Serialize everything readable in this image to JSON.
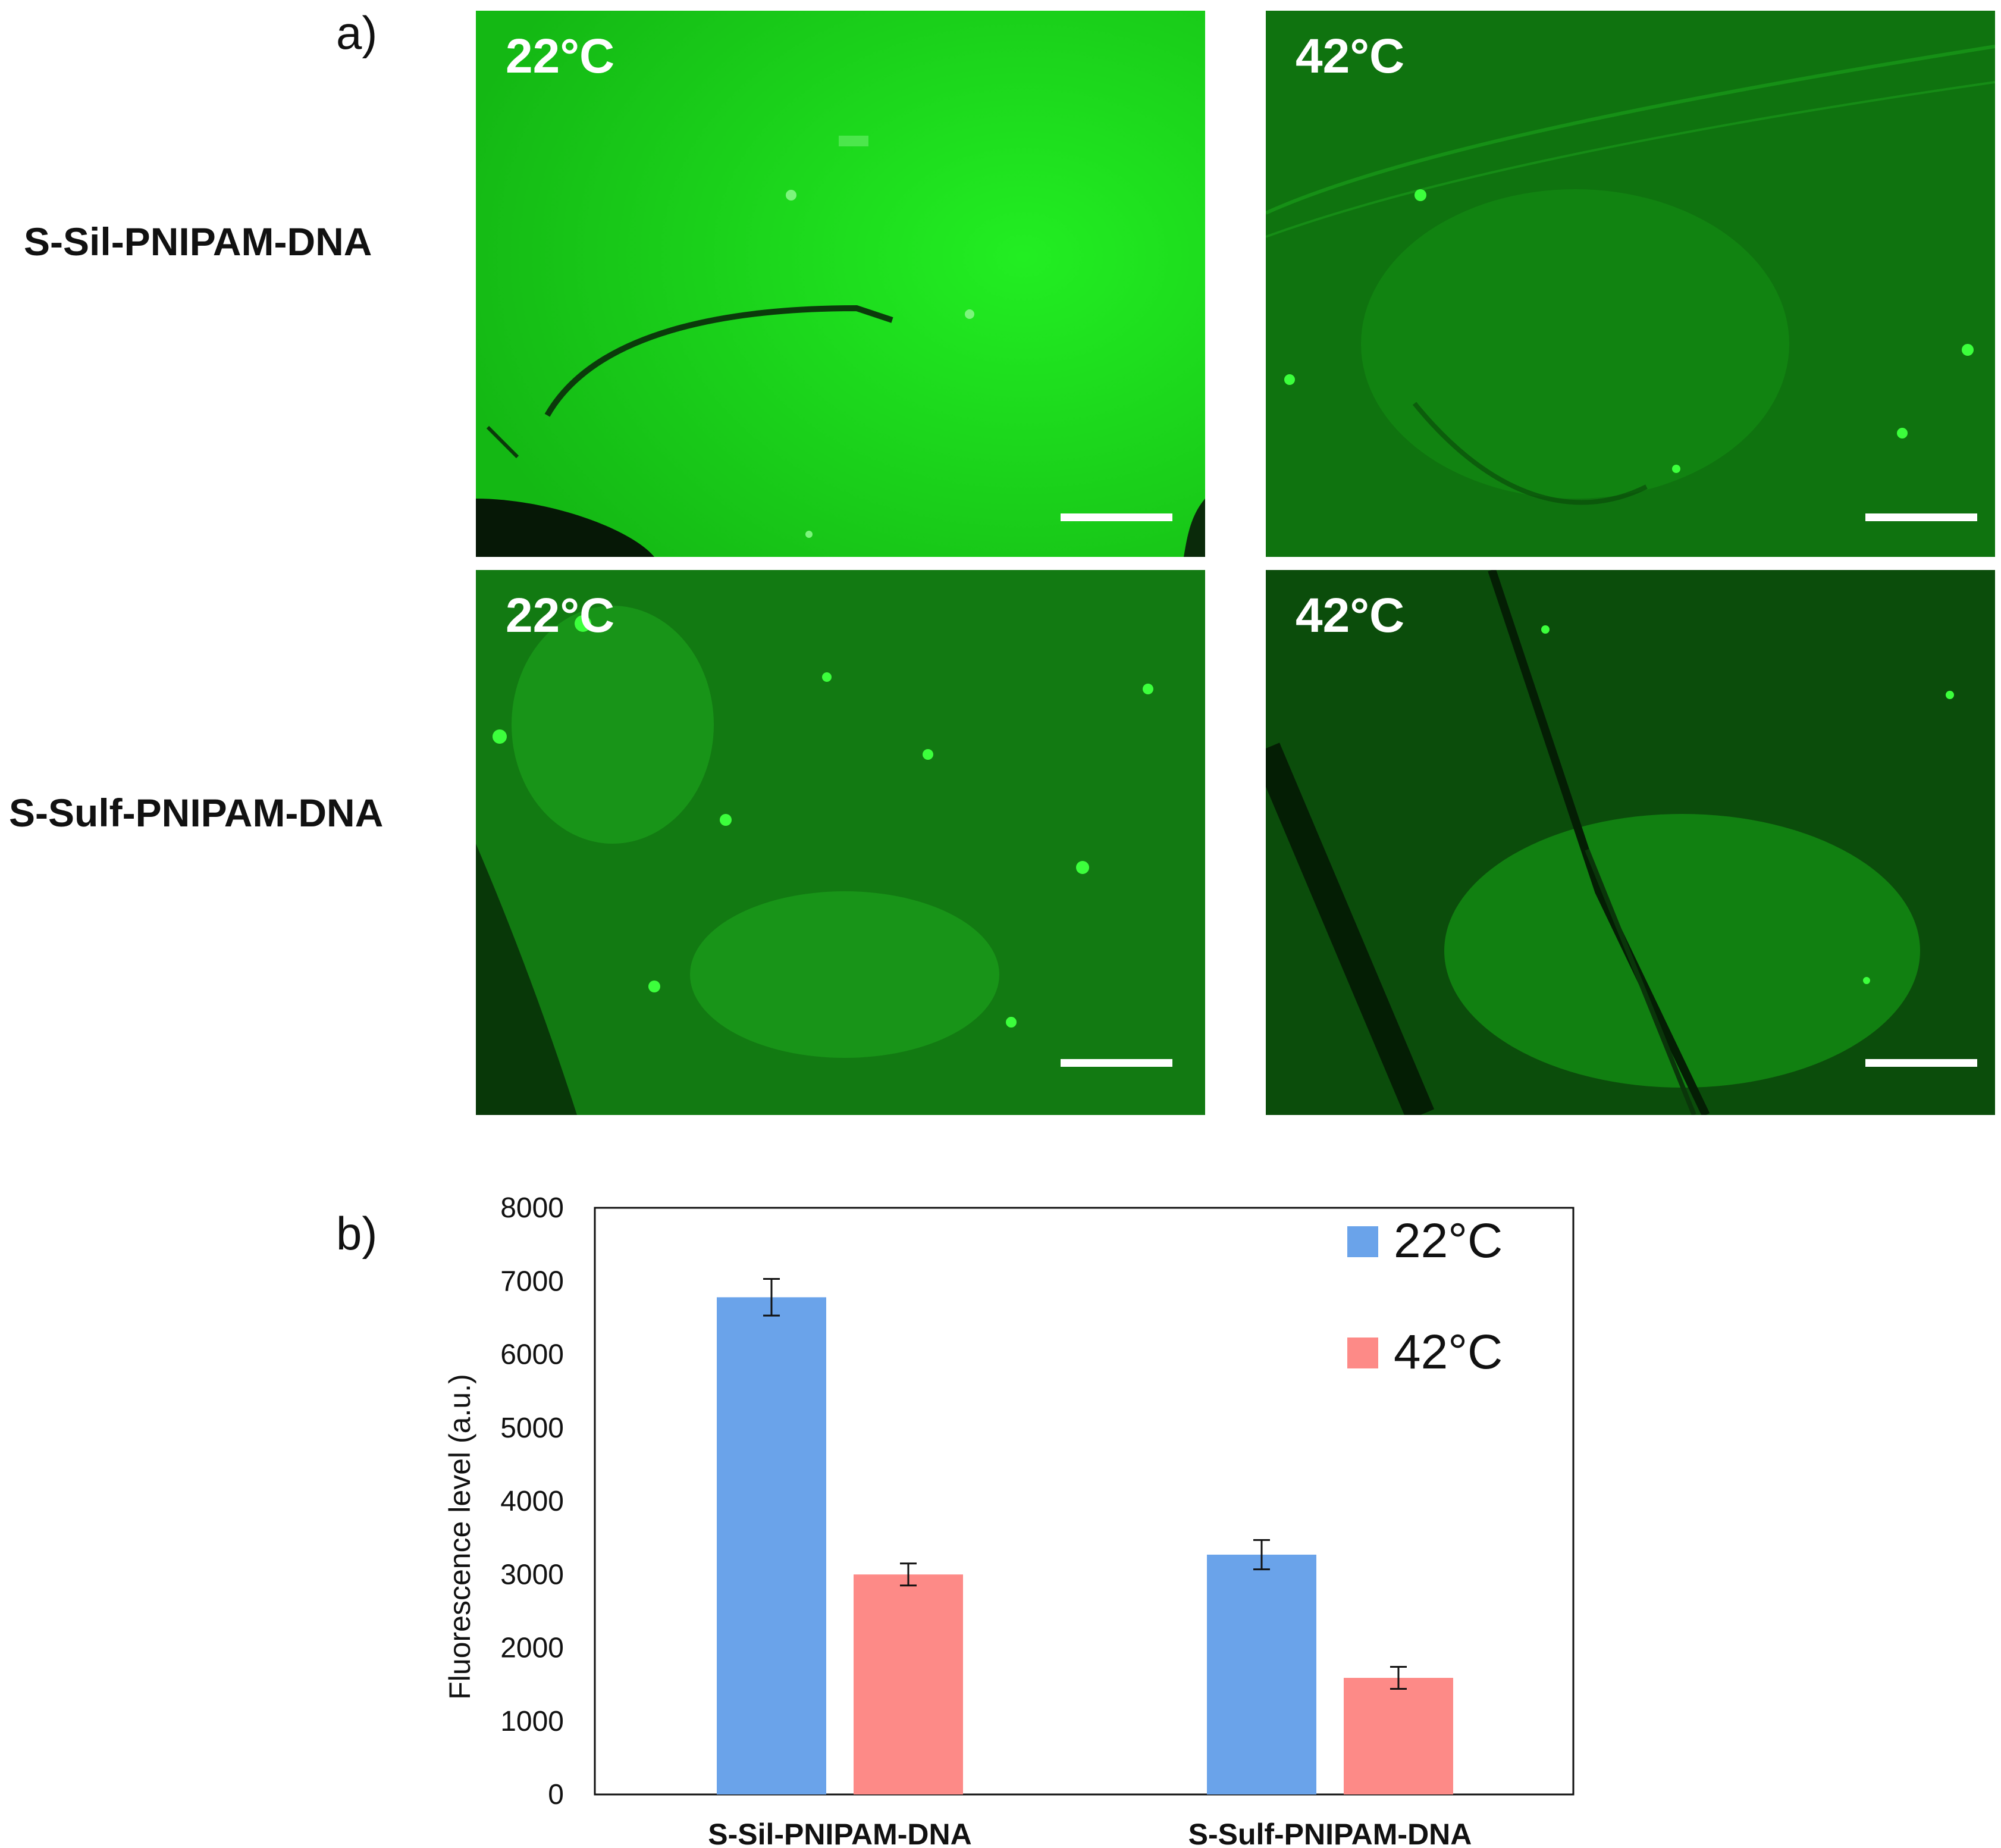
{
  "panel_a": {
    "letter": "a)",
    "rows": [
      {
        "label": "S-Sil-PNIPAM-DNA",
        "images": [
          {
            "temperature": "22°C",
            "brightness": "high"
          },
          {
            "temperature": "42°C",
            "brightness": "medium"
          }
        ]
      },
      {
        "label": "S-Sulf-PNIPAM-DNA",
        "images": [
          {
            "temperature": "22°C",
            "brightness": "medium-speckled"
          },
          {
            "temperature": "42°C",
            "brightness": "low"
          }
        ]
      }
    ],
    "colors": {
      "fluorescence": "#1ee01e",
      "scale_bar": "#ffffff"
    }
  },
  "panel_b": {
    "letter": "b)"
  },
  "chart_data": {
    "type": "bar",
    "categories": [
      "S-Sil-PNIPAM-DNA",
      "S-Sulf-PNIPAM-DNA"
    ],
    "series": [
      {
        "name": "22°C",
        "color": "#6aa3ea",
        "values": [
          6780,
          3270
        ],
        "errors": [
          250,
          200
        ]
      },
      {
        "name": "42°C",
        "color": "#fd8a87",
        "values": [
          3000,
          1590
        ],
        "errors": [
          150,
          150
        ]
      }
    ],
    "ylabel": "Fluorescence level (a.u.)",
    "ylim": [
      0,
      8000
    ],
    "yticks": [
      "0",
      "1000",
      "2000",
      "3000",
      "4000",
      "5000",
      "6000",
      "7000",
      "8000"
    ],
    "grid": false,
    "legend": "top-right"
  }
}
